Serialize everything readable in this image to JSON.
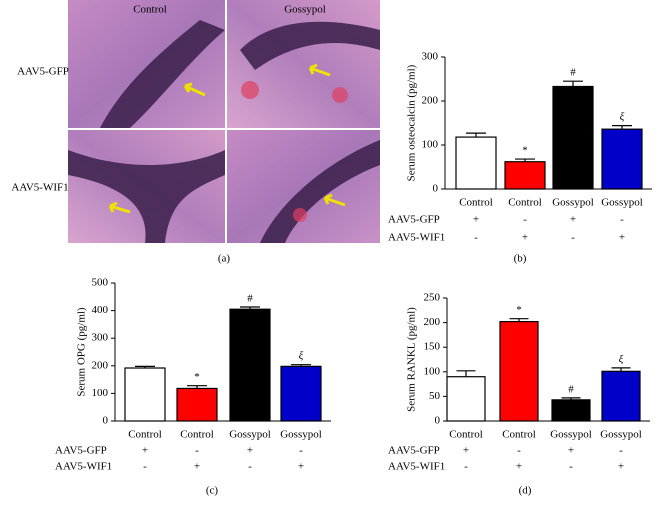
{
  "panel_a": {
    "columns": [
      "Control",
      "Gossypol"
    ],
    "rows": [
      "AAV5-GFP",
      "AAV5-WIF1"
    ],
    "caption": "(a)"
  },
  "chart_data": [
    {
      "type": "bar",
      "caption": "(b)",
      "ylabel": "Serum osteocalcin (pg/ml)",
      "categories": [
        "Control",
        "Control",
        "Gossypol",
        "Gossypol"
      ],
      "values": [
        118,
        62,
        233,
        136
      ],
      "errors": [
        9,
        6,
        12,
        8
      ],
      "colors": [
        "#ffffff",
        "#ff0000",
        "#000000",
        "#0000c8"
      ],
      "markers": [
        null,
        "*",
        "#",
        "ξ"
      ],
      "conditions": [
        {
          "name": "AAV5-GFP",
          "signs": [
            "+",
            "-",
            "+",
            "-"
          ]
        },
        {
          "name": "AAV5-WIF1",
          "signs": [
            "-",
            "+",
            "-",
            "+"
          ]
        }
      ],
      "ylim": [
        0,
        300
      ],
      "yticks": [
        0,
        100,
        200,
        300
      ],
      "grid": false
    },
    {
      "type": "bar",
      "caption": "(c)",
      "ylabel": "Serum OPG (pg/ml)",
      "categories": [
        "Control",
        "Control",
        "Gossypol",
        "Gossypol"
      ],
      "values": [
        192,
        118,
        405,
        198
      ],
      "errors": [
        6,
        10,
        8,
        6
      ],
      "colors": [
        "#ffffff",
        "#ff0000",
        "#000000",
        "#0000c8"
      ],
      "markers": [
        null,
        "*",
        "#",
        "ξ"
      ],
      "conditions": [
        {
          "name": "AAV5-GFP",
          "signs": [
            "+",
            "-",
            "+",
            "-"
          ]
        },
        {
          "name": "AAV5-WIF1",
          "signs": [
            "-",
            "+",
            "-",
            "+"
          ]
        }
      ],
      "ylim": [
        0,
        500
      ],
      "yticks": [
        0,
        100,
        200,
        300,
        400,
        500
      ],
      "grid": false
    },
    {
      "type": "bar",
      "caption": "(d)",
      "ylabel": "Serum RANKL (pg/ml)",
      "categories": [
        "Control",
        "Control",
        "Gossypol",
        "Gossypol"
      ],
      "values": [
        90,
        202,
        43,
        101
      ],
      "errors": [
        12,
        6,
        4,
        7
      ],
      "colors": [
        "#ffffff",
        "#ff0000",
        "#000000",
        "#0000c8"
      ],
      "markers": [
        null,
        "*",
        "#",
        "ξ"
      ],
      "conditions": [
        {
          "name": "AAV5-GFP",
          "signs": [
            "+",
            "-",
            "+",
            "-"
          ]
        },
        {
          "name": "AAV5-WIF1",
          "signs": [
            "-",
            "+",
            "-",
            "+"
          ]
        }
      ],
      "ylim": [
        0,
        250
      ],
      "yticks": [
        0,
        50,
        100,
        150,
        200,
        250
      ],
      "grid": false
    }
  ]
}
